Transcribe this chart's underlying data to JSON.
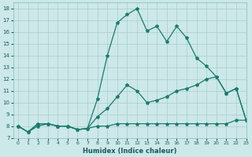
{
  "xlabel": "Humidex (Indice chaleur)",
  "ylabel": "",
  "bg_color": "#cce8e8",
  "grid_color": "#aacccc",
  "line_color": "#1a7a6e",
  "line1_y": [
    8,
    7.5,
    8,
    8.2,
    8,
    8,
    7.7,
    7.8,
    8,
    8,
    8.2,
    8.2,
    8.2,
    8.2,
    8.2,
    8.2,
    8.2,
    8.2,
    8.2,
    8.2,
    8.2,
    8.2,
    8.5,
    8.5
  ],
  "line2_y": [
    8,
    7.5,
    8.2,
    8.2,
    8,
    8,
    7.7,
    7.8,
    8.8,
    9.5,
    10.5,
    11.5,
    11.0,
    10.0,
    10.2,
    10.5,
    11.0,
    11.2,
    11.5,
    12.0,
    12.2,
    10.8,
    11.2,
    8.5
  ],
  "line3_y": [
    8,
    7.5,
    8.2,
    8.2,
    8,
    8,
    7.7,
    7.8,
    10.3,
    14.0,
    16.8,
    17.5,
    18.0,
    16.1,
    16.5,
    15.2,
    16.5,
    15.5,
    13.8,
    13.1,
    12.2,
    10.8,
    11.2,
    8.5
  ],
  "x": [
    0,
    1,
    2,
    3,
    4,
    5,
    6,
    7,
    8,
    9,
    10,
    11,
    12,
    13,
    14,
    15,
    16,
    17,
    18,
    19,
    20,
    21,
    22,
    23
  ],
  "xlim": [
    -0.5,
    23
  ],
  "ylim": [
    7,
    18.5
  ],
  "xticks": [
    0,
    1,
    2,
    3,
    4,
    5,
    6,
    7,
    8,
    9,
    10,
    11,
    12,
    13,
    14,
    15,
    16,
    17,
    18,
    19,
    20,
    21,
    22,
    23
  ],
  "yticks": [
    7,
    8,
    9,
    10,
    11,
    12,
    13,
    14,
    15,
    16,
    17,
    18
  ],
  "marker": "*",
  "markersize": 3,
  "linewidth": 0.9
}
